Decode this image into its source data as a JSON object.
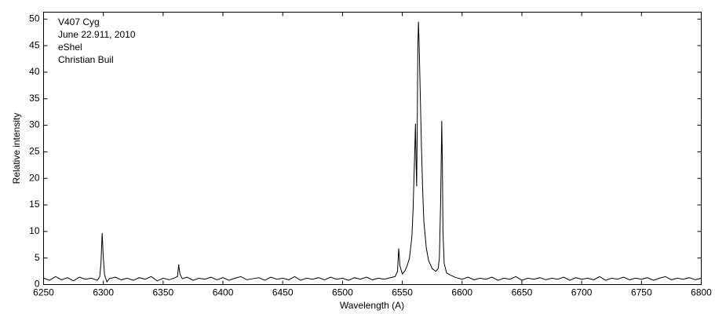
{
  "chart_data": {
    "type": "line",
    "annotations": [
      "V407 Cyg",
      "June 22.911, 2010",
      "eShel",
      "Christian Buil"
    ],
    "x_label": "Wavelength (A)",
    "y_label": "Relative intensity",
    "xlim": [
      6250,
      6800
    ],
    "ylim": [
      0,
      51.3
    ],
    "xticks": [
      6250,
      6300,
      6350,
      6400,
      6450,
      6500,
      6550,
      6600,
      6650,
      6700,
      6750,
      6800
    ],
    "yticks": [
      0,
      5,
      10,
      15,
      20,
      25,
      30,
      35,
      40,
      45,
      50
    ],
    "grid": false,
    "series": [
      {
        "color": "#000000",
        "x": [
          6250,
          6255,
          6260,
          6265,
          6270,
          6275,
          6280,
          6285,
          6290,
          6295,
          6297,
          6298,
          6299,
          6300,
          6301,
          6303,
          6305,
          6310,
          6315,
          6320,
          6325,
          6330,
          6335,
          6340,
          6345,
          6350,
          6355,
          6360,
          6362,
          6363,
          6364,
          6366,
          6370,
          6375,
          6380,
          6385,
          6390,
          6395,
          6400,
          6405,
          6410,
          6415,
          6420,
          6425,
          6430,
          6435,
          6440,
          6445,
          6450,
          6455,
          6460,
          6465,
          6470,
          6475,
          6480,
          6485,
          6490,
          6495,
          6500,
          6505,
          6510,
          6515,
          6520,
          6525,
          6530,
          6535,
          6540,
          6544,
          6546,
          6547,
          6548,
          6550,
          6552,
          6554,
          6556,
          6558,
          6559,
          6560,
          6561,
          6561.5,
          6562,
          6562.5,
          6563,
          6563.5,
          6564,
          6565,
          6566,
          6567,
          6568,
          6570,
          6572,
          6575,
          6578,
          6580,
          6581,
          6582,
          6583,
          6583.5,
          6584,
          6585,
          6587,
          6590,
          6595,
          6600,
          6605,
          6610,
          6615,
          6620,
          6625,
          6630,
          6635,
          6640,
          6645,
          6650,
          6655,
          6660,
          6665,
          6670,
          6675,
          6680,
          6685,
          6690,
          6695,
          6700,
          6705,
          6710,
          6715,
          6720,
          6725,
          6730,
          6735,
          6740,
          6745,
          6750,
          6755,
          6760,
          6765,
          6770,
          6775,
          6780,
          6785,
          6790,
          6795,
          6800
        ],
        "values": [
          1.2,
          0.8,
          1.5,
          0.9,
          1.3,
          0.7,
          1.4,
          1.0,
          1.2,
          0.8,
          1.5,
          4,
          9.7,
          5,
          1.8,
          0.5,
          1.1,
          1.4,
          0.9,
          1.2,
          0.8,
          1.3,
          1.0,
          1.5,
          0.7,
          1.2,
          0.9,
          1.3,
          1.5,
          3.8,
          2.0,
          1.1,
          1.4,
          0.8,
          1.2,
          1.0,
          1.4,
          0.9,
          1.3,
          0.8,
          1.2,
          1.5,
          0.9,
          1.1,
          1.3,
          0.8,
          1.4,
          1.0,
          1.2,
          0.9,
          1.5,
          0.8,
          1.2,
          1.0,
          1.3,
          0.9,
          1.4,
          1.0,
          1.2,
          0.8,
          1.3,
          1.0,
          1.4,
          0.9,
          1.2,
          1.0,
          1.3,
          1.5,
          2.5,
          6.8,
          3.5,
          2.0,
          2.5,
          3.5,
          5,
          9,
          14,
          22,
          30.3,
          23,
          18.5,
          30,
          45,
          49.5,
          46,
          36,
          26,
          18,
          12,
          7,
          4.5,
          3,
          2.5,
          3,
          5,
          15,
          30.8,
          23,
          10,
          4,
          2.2,
          1.8,
          1.3,
          1.0,
          1.4,
          0.9,
          1.2,
          1.0,
          1.4,
          0.8,
          1.2,
          1.0,
          1.5,
          0.8,
          1.2,
          1.0,
          1.3,
          0.9,
          1.2,
          1.0,
          1.4,
          0.8,
          1.3,
          1.0,
          1.2,
          0.9,
          1.5,
          0.8,
          1.2,
          1.0,
          1.4,
          0.9,
          1.2,
          1.0,
          1.3,
          0.8,
          1.2,
          1.5,
          0.9,
          1.2,
          1.0,
          1.3,
          0.9,
          1.2
        ]
      }
    ]
  }
}
